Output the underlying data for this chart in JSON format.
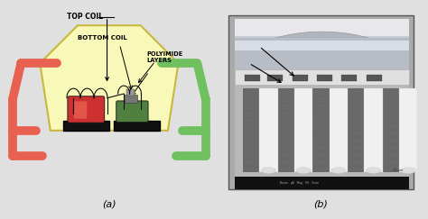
{
  "bg_color": "#e0e0e0",
  "panel_a_label": "(a)",
  "panel_b_label": "(b)",
  "label_top_coil": "TOP COIL",
  "label_bottom_coil": "BOTTOM COIL",
  "label_polyimide": "POLYIMIDE\nLAYERS",
  "hex_fill": "#f8f8b8",
  "hex_edge": "#c8b840",
  "left_arm_color": "#e86050",
  "right_arm_color": "#70c060",
  "left_coil_color": "#cc3030",
  "right_coil_color": "#508040",
  "black_color": "#111111",
  "wire_color": "#111111"
}
